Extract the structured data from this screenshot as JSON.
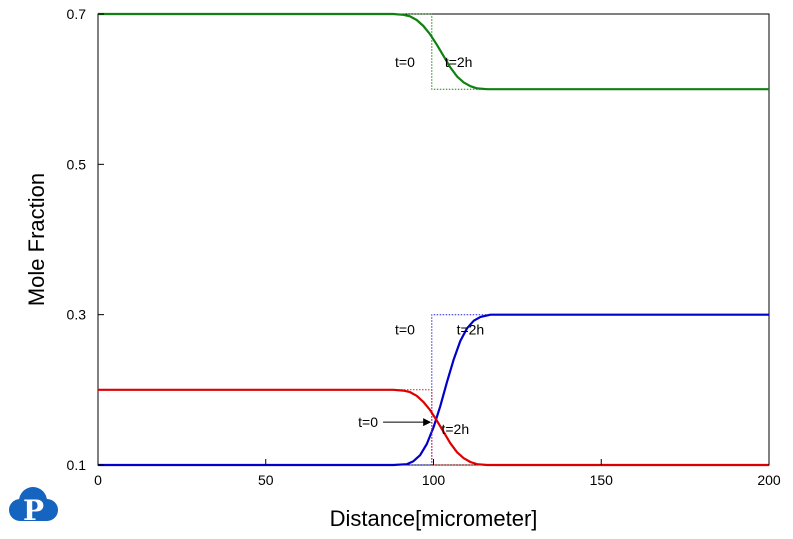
{
  "chart_data": {
    "type": "line",
    "title": "",
    "xlabel": "Distance[micrometer]",
    "ylabel": "Mole Fraction",
    "xlim": [
      0,
      200
    ],
    "ylim": [
      0.1,
      0.7
    ],
    "x_ticks": [
      "0",
      "50",
      "100",
      "150",
      "200"
    ],
    "y_ticks": [
      "0.1",
      "0.3",
      "0.5",
      "0.7"
    ],
    "grid": false,
    "legend": "none",
    "series": [
      {
        "color": "#108010",
        "style": "dotted",
        "points": [
          [
            0,
            0.7
          ],
          [
            99.5,
            0.7
          ],
          [
            99.5,
            0.6
          ],
          [
            200,
            0.6
          ]
        ]
      },
      {
        "color": "#108010",
        "style": "solid",
        "points": [
          [
            0,
            0.7
          ],
          [
            88,
            0.7
          ],
          [
            91,
            0.699
          ],
          [
            93,
            0.697
          ],
          [
            95,
            0.692
          ],
          [
            97,
            0.684
          ],
          [
            99,
            0.673
          ],
          [
            101,
            0.659
          ],
          [
            103,
            0.644
          ],
          [
            105,
            0.629
          ],
          [
            107,
            0.617
          ],
          [
            109,
            0.609
          ],
          [
            111,
            0.604
          ],
          [
            113,
            0.601
          ],
          [
            116,
            0.6
          ],
          [
            200,
            0.6
          ]
        ]
      },
      {
        "color": "#2020e0",
        "style": "dotted",
        "points": [
          [
            0,
            0.1
          ],
          [
            99.5,
            0.1
          ],
          [
            99.5,
            0.3
          ],
          [
            200,
            0.3
          ]
        ]
      },
      {
        "color": "#0000cc",
        "style": "solid",
        "points": [
          [
            0,
            0.1
          ],
          [
            88,
            0.1
          ],
          [
            92,
            0.101
          ],
          [
            94,
            0.105
          ],
          [
            96,
            0.113
          ],
          [
            98,
            0.128
          ],
          [
            100,
            0.15
          ],
          [
            102,
            0.178
          ],
          [
            104,
            0.21
          ],
          [
            106,
            0.24
          ],
          [
            108,
            0.265
          ],
          [
            110,
            0.282
          ],
          [
            112,
            0.292
          ],
          [
            114,
            0.297
          ],
          [
            117,
            0.3
          ],
          [
            200,
            0.3
          ]
        ]
      },
      {
        "color": "#e02020",
        "style": "dotted",
        "points": [
          [
            0,
            0.2
          ],
          [
            99.5,
            0.2
          ],
          [
            99.5,
            0.1
          ],
          [
            200,
            0.1
          ]
        ]
      },
      {
        "color": "#dd0000",
        "style": "solid",
        "points": [
          [
            0,
            0.2
          ],
          [
            88,
            0.2
          ],
          [
            91,
            0.199
          ],
          [
            93,
            0.197
          ],
          [
            95,
            0.192
          ],
          [
            97,
            0.184
          ],
          [
            99,
            0.173
          ],
          [
            101,
            0.159
          ],
          [
            103,
            0.144
          ],
          [
            105,
            0.129
          ],
          [
            107,
            0.117
          ],
          [
            109,
            0.109
          ],
          [
            111,
            0.104
          ],
          [
            113,
            0.101
          ],
          [
            116,
            0.1
          ],
          [
            200,
            0.1
          ]
        ]
      }
    ],
    "annotations": [
      {
        "text": "t=0",
        "x": 91.5,
        "y": 0.636
      },
      {
        "text": "t=2h",
        "x": 107.5,
        "y": 0.636
      },
      {
        "text": "t=0",
        "x": 91.5,
        "y": 0.28
      },
      {
        "text": "t=2h",
        "x": 111,
        "y": 0.28
      },
      {
        "text": "t=0",
        "x": 80.5,
        "y": 0.157,
        "arrow_to": [
          99,
          0.157
        ]
      },
      {
        "text": "t=2h",
        "x": 106.5,
        "y": 0.148
      }
    ]
  },
  "logo": {
    "letter": "P",
    "color": "#1565c0"
  }
}
